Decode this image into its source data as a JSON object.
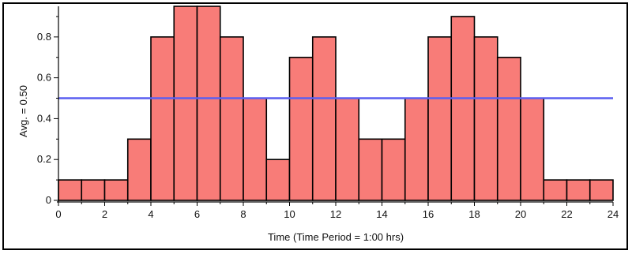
{
  "chart_data": {
    "type": "bar",
    "xlabel": "Time (Time Period = 1:00 hrs)",
    "ylabel": "Avg. = 0.50",
    "average": 0.5,
    "xlim": [
      0,
      24
    ],
    "ylim": [
      0,
      0.95
    ],
    "x_ticks": [
      "0",
      "2",
      "4",
      "6",
      "8",
      "10",
      "12",
      "14",
      "16",
      "18",
      "20",
      "22",
      "24"
    ],
    "y_ticks": [
      "0",
      "0.2",
      "0.4",
      "0.6",
      "0.8"
    ],
    "bin_edges": [
      0,
      1,
      2,
      3,
      4,
      5,
      6,
      7,
      8,
      9,
      10,
      11,
      12,
      13,
      14,
      15,
      16,
      17,
      18,
      19,
      20,
      21,
      22,
      23,
      24
    ],
    "values": [
      0.1,
      0.1,
      0.1,
      0.3,
      0.8,
      0.95,
      0.95,
      0.8,
      0.5,
      0.2,
      0.7,
      0.8,
      0.5,
      0.3,
      0.3,
      0.5,
      0.8,
      0.9,
      0.8,
      0.7,
      0.5,
      0.1,
      0.1,
      0.1
    ],
    "colors": {
      "bar_fill": "#f87c78",
      "bar_stroke": "#000000",
      "avg_line": "#5a5ff0"
    },
    "grid": false
  }
}
